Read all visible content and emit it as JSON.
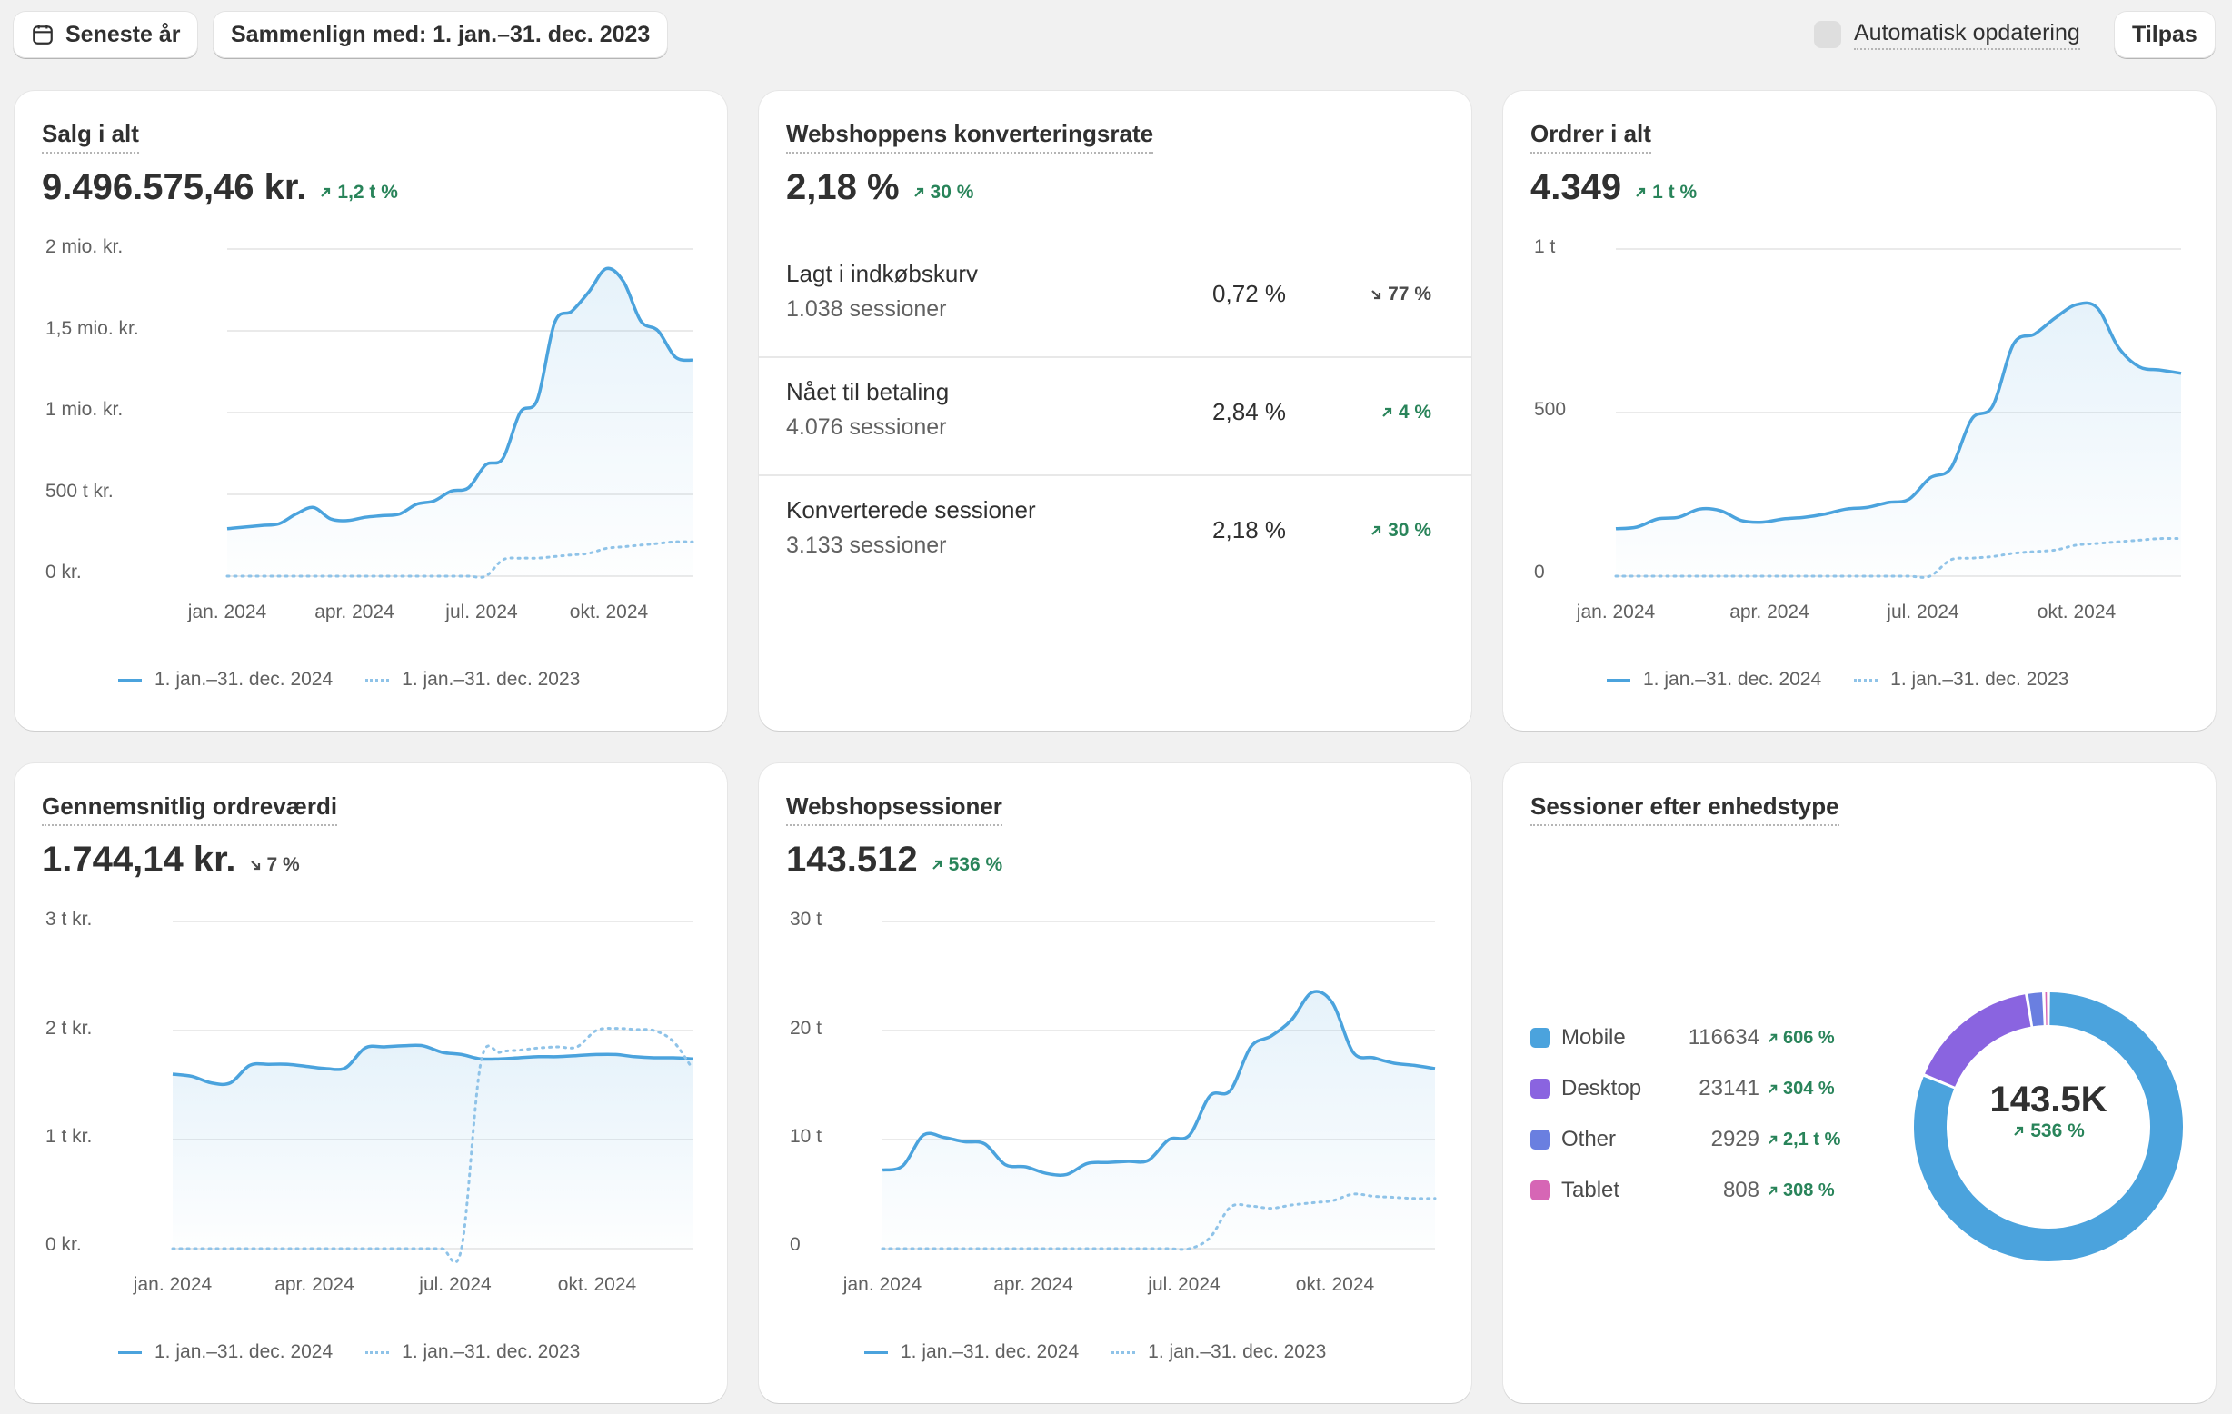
{
  "toolbar": {
    "date_range": "Seneste år",
    "compare": "Sammenlign med: 1. jan.–31. dec. 2023",
    "auto_update": "Automatisk opdatering",
    "customize": "Tilpas"
  },
  "legend": {
    "current": "1. jan.–31. dec. 2024",
    "previous": "1. jan.–31. dec. 2023"
  },
  "colors": {
    "accent": "#4ba3dd",
    "positive": "#29845a",
    "neutral": "#4a4a4a"
  },
  "cards": {
    "sales": {
      "title": "Salg i alt",
      "value": "9.496.575,46 kr.",
      "trend": "1,2 t %",
      "trend_dir": "up",
      "yticks": [
        "2 mio. kr.",
        "1,5 mio. kr.",
        "1 mio. kr.",
        "500 t kr.",
        "0 kr."
      ],
      "xticks": [
        "jan. 2024",
        "apr. 2024",
        "jul. 2024",
        "okt. 2024"
      ]
    },
    "conversion": {
      "title": "Webshoppens konverteringsrate",
      "value": "2,18 %",
      "trend": "30 %",
      "trend_dir": "up",
      "rows": [
        {
          "name": "Lagt i indkøbskurv",
          "sub": "1.038 sessioner",
          "pct": "0,72 %",
          "trend": "77 %",
          "dir": "down"
        },
        {
          "name": "Nået til betaling",
          "sub": "4.076 sessioner",
          "pct": "2,84 %",
          "trend": "4 %",
          "dir": "up"
        },
        {
          "name": "Konverterede sessioner",
          "sub": "3.133 sessioner",
          "pct": "2,18 %",
          "trend": "30 %",
          "dir": "up"
        }
      ]
    },
    "orders": {
      "title": "Ordrer i alt",
      "value": "4.349",
      "trend": "1 t %",
      "trend_dir": "up",
      "yticks": [
        "1 t",
        "500",
        "0"
      ],
      "xticks": [
        "jan. 2024",
        "apr. 2024",
        "jul. 2024",
        "okt. 2024"
      ]
    },
    "aov": {
      "title": "Gennemsnitlig ordreværdi",
      "value": "1.744,14 kr.",
      "trend": "7 %",
      "trend_dir": "down",
      "yticks": [
        "3 t kr.",
        "2 t kr.",
        "1 t kr.",
        "0 kr."
      ],
      "xticks": [
        "jan. 2024",
        "apr. 2024",
        "jul. 2024",
        "okt. 2024"
      ]
    },
    "sessions": {
      "title": "Webshopsessioner",
      "value": "143.512",
      "trend": "536 %",
      "trend_dir": "up",
      "yticks": [
        "30 t",
        "20 t",
        "10 t",
        "0"
      ],
      "xticks": [
        "jan. 2024",
        "apr. 2024",
        "jul. 2024",
        "okt. 2024"
      ]
    },
    "devices": {
      "title": "Sessioner efter enhedstype",
      "total": "143.5K",
      "total_trend": "536 %",
      "items": [
        {
          "name": "Mobile",
          "count": "116634",
          "trend": "606 %",
          "color": "#4ba3dd"
        },
        {
          "name": "Desktop",
          "count": "23141",
          "trend": "304 %",
          "color": "#8a64e0"
        },
        {
          "name": "Other",
          "count": "2929",
          "trend": "2,1 t %",
          "color": "#6a7fe0"
        },
        {
          "name": "Tablet",
          "count": "808",
          "trend": "308 %",
          "color": "#d666b5"
        }
      ]
    }
  },
  "chart_data": [
    {
      "type": "line",
      "name": "sales",
      "ylim": [
        0,
        2000000
      ],
      "x": [
        0,
        1,
        2,
        3,
        4,
        5,
        6,
        7,
        8,
        9,
        10,
        11,
        12,
        13,
        14,
        15,
        16,
        17,
        18,
        19,
        20,
        21,
        22,
        23,
        24,
        25,
        26,
        27
      ],
      "series": [
        {
          "name": "1. jan.–31. dec. 2024",
          "values": [
            290000,
            300000,
            310000,
            320000,
            380000,
            420000,
            350000,
            340000,
            360000,
            370000,
            380000,
            440000,
            460000,
            520000,
            540000,
            680000,
            720000,
            1000000,
            1080000,
            1550000,
            1620000,
            1740000,
            1880000,
            1800000,
            1560000,
            1500000,
            1340000,
            1320000
          ]
        },
        {
          "name": "1. jan.–31. dec. 2023",
          "values": [
            0,
            0,
            0,
            0,
            0,
            0,
            0,
            0,
            0,
            0,
            0,
            0,
            0,
            0,
            0,
            0,
            100000,
            110000,
            110000,
            120000,
            130000,
            140000,
            170000,
            180000,
            190000,
            200000,
            210000,
            210000
          ]
        }
      ]
    },
    {
      "type": "line",
      "name": "orders",
      "ylim": [
        0,
        1000
      ],
      "x": [
        0,
        1,
        2,
        3,
        4,
        5,
        6,
        7,
        8,
        9,
        10,
        11,
        12,
        13,
        14,
        15,
        16,
        17,
        18,
        19,
        20,
        21,
        22,
        23,
        24,
        25,
        26,
        27
      ],
      "series": [
        {
          "name": "1. jan.–31. dec. 2024",
          "values": [
            145,
            150,
            175,
            180,
            205,
            200,
            170,
            165,
            175,
            180,
            190,
            205,
            210,
            225,
            235,
            300,
            330,
            480,
            520,
            710,
            740,
            790,
            830,
            820,
            700,
            640,
            630,
            620
          ]
        },
        {
          "name": "1. jan.–31. dec. 2023",
          "values": [
            0,
            0,
            0,
            0,
            0,
            0,
            0,
            0,
            0,
            0,
            0,
            0,
            0,
            0,
            0,
            0,
            50,
            55,
            60,
            70,
            75,
            80,
            95,
            100,
            105,
            110,
            115,
            115
          ]
        }
      ]
    },
    {
      "type": "line",
      "name": "aov",
      "ylim": [
        0,
        3000
      ],
      "x": [
        0,
        1,
        2,
        3,
        4,
        5,
        6,
        7,
        8,
        9,
        10,
        11,
        12,
        13,
        14,
        15,
        16,
        17,
        18,
        19,
        20,
        21,
        22,
        23,
        24,
        25,
        26,
        27
      ],
      "series": [
        {
          "name": "1. jan.–31. dec. 2024",
          "values": [
            1600,
            1580,
            1520,
            1520,
            1680,
            1690,
            1690,
            1670,
            1650,
            1660,
            1840,
            1850,
            1860,
            1860,
            1800,
            1780,
            1740,
            1740,
            1750,
            1760,
            1760,
            1770,
            1780,
            1780,
            1760,
            1750,
            1750,
            1740
          ]
        },
        {
          "name": "1. jan.–31. dec. 2023",
          "values": [
            0,
            0,
            0,
            0,
            0,
            0,
            0,
            0,
            0,
            0,
            0,
            0,
            0,
            0,
            0,
            0,
            1700,
            1800,
            1820,
            1840,
            1850,
            1850,
            2000,
            2020,
            2010,
            2000,
            1900,
            1650
          ]
        }
      ]
    },
    {
      "type": "line",
      "name": "sessions",
      "ylim": [
        0,
        30000
      ],
      "x": [
        0,
        1,
        2,
        3,
        4,
        5,
        6,
        7,
        8,
        9,
        10,
        11,
        12,
        13,
        14,
        15,
        16,
        17,
        18,
        19,
        20,
        21,
        22,
        23,
        24,
        25,
        26,
        27
      ],
      "series": [
        {
          "name": "1. jan.–31. dec. 2024",
          "values": [
            7200,
            7600,
            10400,
            10200,
            9800,
            9600,
            7700,
            7500,
            6900,
            6800,
            7800,
            7900,
            8000,
            8100,
            10000,
            10400,
            14000,
            14500,
            18500,
            19500,
            21000,
            23500,
            22500,
            18000,
            17500,
            17000,
            16800,
            16500
          ]
        },
        {
          "name": "1. jan.–31. dec. 2023",
          "values": [
            0,
            0,
            0,
            0,
            0,
            0,
            0,
            0,
            0,
            0,
            0,
            0,
            0,
            0,
            0,
            0,
            1000,
            3800,
            3900,
            3700,
            4000,
            4200,
            4400,
            5000,
            4800,
            4700,
            4600,
            4600
          ]
        }
      ]
    },
    {
      "type": "pie",
      "name": "devices",
      "categories": [
        "Mobile",
        "Desktop",
        "Other",
        "Tablet"
      ],
      "values": [
        116634,
        23141,
        2929,
        808
      ]
    }
  ]
}
